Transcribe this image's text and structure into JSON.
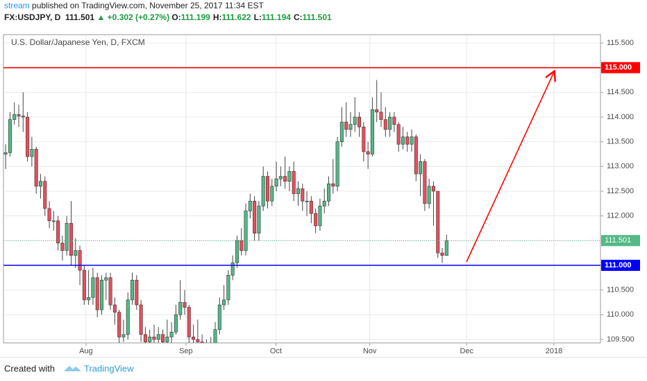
{
  "header": {
    "author": "stream",
    "published": "published on TradingView.com, November 25, 2017 11:34 EST",
    "symbol": "FX:USDJPY, D",
    "price": "111.501",
    "arrow": "▲",
    "change": "+0.302 (+0.27%)",
    "ohlc": [
      {
        "label": "O:",
        "value": "111.199"
      },
      {
        "label": "H:",
        "value": "111.622"
      },
      {
        "label": "L:",
        "value": "111.194"
      },
      {
        "label": "C:",
        "value": "111.501"
      }
    ]
  },
  "chart_data": {
    "type": "candlestick",
    "title": "U.S. Dollar/Japanese Yen, D, FXCM",
    "up_color": "#53b987",
    "down_color": "#eb4d5c",
    "grid": true,
    "open": [
      113.25,
      113.28,
      113.95,
      114.05,
      114.02,
      114.0,
      113.2,
      113.35,
      112.6,
      112.7,
      112.15,
      111.9,
      111.9,
      111.45,
      111.3,
      111.85,
      111.2,
      111.3,
      110.9,
      110.3,
      110.35,
      110.75,
      110.1,
      110.7,
      110.75,
      110.2,
      110.05,
      109.55,
      109.6,
      110.3,
      110.7,
      110.2,
      109.6,
      109.45,
      109.55,
      109.5,
      109.6,
      109.45,
      109.55,
      109.65,
      110.0,
      110.25,
      110.15,
      109.55,
      109.5,
      109.45,
      109.3,
      109.3,
      109.3,
      109.7,
      110.2,
      110.3,
      110.8,
      111.05,
      111.5,
      111.3,
      112.1,
      112.3,
      111.65,
      112.2,
      112.8,
      112.3,
      112.6,
      112.75,
      112.8,
      112.7,
      112.9,
      112.45,
      112.55,
      112.3,
      112.3,
      112.05,
      111.8,
      112.2,
      112.3,
      112.65,
      112.6,
      113.5,
      113.9,
      113.75,
      113.85,
      114.0,
      113.8,
      113.3,
      113.25,
      114.15,
      114.1,
      113.95,
      113.75,
      114.0,
      113.85,
      113.45,
      113.6,
      113.45,
      113.6,
      112.85,
      113.1,
      112.25,
      112.6,
      112.5,
      111.25,
      111.199
    ],
    "high": [
      113.45,
      114.1,
      114.3,
      114.25,
      114.5,
      114.1,
      113.6,
      113.4,
      112.85,
      112.8,
      112.3,
      112.1,
      112.0,
      111.6,
      112.0,
      112.3,
      111.55,
      111.4,
      111.0,
      110.9,
      110.95,
      110.85,
      110.8,
      110.85,
      110.85,
      110.35,
      110.1,
      109.9,
      110.45,
      110.85,
      110.8,
      110.3,
      109.75,
      109.7,
      109.8,
      109.75,
      109.7,
      109.9,
      109.85,
      110.2,
      110.7,
      110.5,
      110.2,
      109.8,
      109.9,
      109.6,
      109.5,
      109.55,
      109.85,
      110.35,
      110.6,
      110.9,
      111.2,
      111.6,
      111.75,
      112.25,
      112.45,
      112.4,
      112.3,
      113.0,
      112.9,
      112.75,
      113.1,
      113.0,
      113.2,
      113.0,
      113.1,
      112.7,
      112.65,
      112.5,
      112.4,
      112.15,
      112.35,
      112.55,
      112.8,
      113.15,
      113.6,
      114.2,
      114.3,
      114.1,
      114.4,
      114.1,
      113.9,
      113.5,
      114.4,
      114.75,
      114.5,
      114.2,
      114.1,
      114.1,
      113.9,
      113.8,
      113.7,
      113.75,
      113.65,
      113.25,
      113.15,
      112.75,
      112.7,
      112.5,
      111.35,
      111.622
    ],
    "low": [
      112.95,
      113.2,
      113.85,
      113.8,
      113.7,
      113.1,
      113.0,
      112.45,
      112.35,
      112.0,
      111.75,
      111.7,
      111.3,
      111.1,
      111.2,
      111.0,
      110.95,
      110.6,
      110.2,
      110.2,
      110.2,
      109.95,
      110.0,
      110.3,
      110.1,
      109.8,
      109.4,
      109.45,
      109.5,
      110.2,
      110.1,
      109.45,
      109.3,
      109.35,
      109.4,
      109.4,
      109.3,
      109.35,
      109.4,
      109.6,
      109.9,
      110.0,
      109.4,
      109.35,
      109.3,
      109.2,
      109.2,
      109.2,
      109.25,
      109.6,
      110.1,
      110.2,
      110.7,
      110.95,
      111.2,
      111.2,
      111.95,
      111.5,
      111.5,
      112.1,
      112.15,
      112.2,
      112.5,
      112.6,
      112.55,
      112.5,
      112.3,
      112.2,
      112.1,
      112.0,
      111.85,
      111.65,
      111.7,
      112.05,
      112.2,
      112.45,
      112.5,
      113.4,
      113.6,
      113.6,
      113.7,
      113.6,
      113.1,
      112.95,
      113.2,
      113.9,
      113.8,
      113.6,
      113.6,
      113.7,
      113.3,
      113.35,
      113.3,
      113.3,
      112.7,
      112.4,
      112.1,
      112.15,
      111.8,
      111.15,
      111.05,
      111.194
    ],
    "close": [
      113.28,
      113.95,
      114.05,
      114.02,
      114.0,
      113.2,
      113.35,
      112.6,
      112.7,
      112.15,
      111.9,
      111.9,
      111.45,
      111.3,
      111.85,
      111.2,
      111.3,
      110.9,
      110.3,
      110.35,
      110.75,
      110.1,
      110.7,
      110.75,
      110.2,
      110.05,
      109.55,
      109.6,
      110.3,
      110.7,
      110.2,
      109.6,
      109.45,
      109.55,
      109.5,
      109.6,
      109.45,
      109.55,
      109.65,
      110.0,
      110.25,
      110.15,
      109.55,
      109.5,
      109.45,
      109.3,
      109.3,
      109.3,
      109.7,
      110.2,
      110.3,
      110.8,
      111.05,
      111.5,
      111.3,
      112.1,
      112.3,
      111.65,
      112.2,
      112.8,
      112.3,
      112.6,
      112.75,
      112.8,
      112.7,
      112.9,
      112.45,
      112.55,
      112.3,
      112.3,
      112.05,
      111.8,
      112.2,
      112.3,
      112.65,
      112.6,
      113.5,
      113.9,
      113.75,
      113.85,
      114.0,
      113.8,
      113.3,
      113.25,
      114.15,
      114.1,
      113.95,
      113.75,
      114.0,
      113.85,
      113.45,
      113.6,
      113.45,
      113.6,
      112.85,
      113.1,
      112.25,
      112.6,
      112.5,
      111.25,
      111.2,
      111.501
    ],
    "xlim": [
      -0.5,
      136.25
    ],
    "xticks": [
      {
        "value": 18.4,
        "label": "Aug"
      },
      {
        "value": 41.3,
        "label": "Sep"
      },
      {
        "value": 61.9,
        "label": "Oct"
      },
      {
        "value": 83.4,
        "label": "Nov"
      },
      {
        "value": 105.6,
        "label": "Dec"
      },
      {
        "value": 125.6,
        "label": "2018"
      }
    ],
    "ylim": [
      109.43,
      115.668
    ],
    "yticks": [
      {
        "value": 109.5,
        "label": "109.500"
      },
      {
        "value": 110.0,
        "label": "110.000"
      },
      {
        "value": 110.5,
        "label": "110.500"
      },
      {
        "value": 111.0,
        "label": "111.000"
      },
      {
        "value": 111.5,
        "label": "111.500"
      },
      {
        "value": 112.0,
        "label": "112.000"
      },
      {
        "value": 112.5,
        "label": "112.500"
      },
      {
        "value": 113.0,
        "label": "113.000"
      },
      {
        "value": 113.5,
        "label": "113.500"
      },
      {
        "value": 114.0,
        "label": "114.000"
      },
      {
        "value": 114.5,
        "label": "114.500"
      },
      {
        "value": 115.0,
        "label": "115.000"
      },
      {
        "value": 115.5,
        "label": "115.500"
      }
    ],
    "lines": [
      {
        "value": 115.0,
        "label": "115.000",
        "color": "#ff0000"
      },
      {
        "value": 111.0,
        "label": "111.000",
        "color": "#0000ff"
      }
    ],
    "last_price": {
      "value": 111.501,
      "label": "111.501",
      "color": "#53b987"
    }
  },
  "footer": {
    "created": "Created with",
    "brand": "TradingView"
  }
}
